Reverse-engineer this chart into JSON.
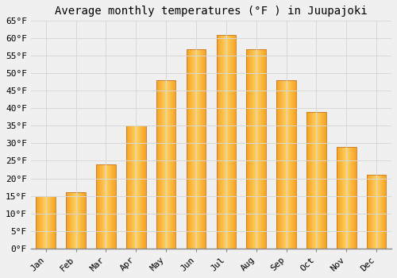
{
  "title": "Average monthly temperatures (°F ) in Juupajoki",
  "months": [
    "Jan",
    "Feb",
    "Mar",
    "Apr",
    "May",
    "Jun",
    "Jul",
    "Aug",
    "Sep",
    "Oct",
    "Nov",
    "Dec"
  ],
  "values": [
    15,
    16,
    24,
    35,
    48,
    57,
    61,
    57,
    48,
    39,
    29,
    21
  ],
  "bar_color_left": "#F5A020",
  "bar_color_center": "#FFD060",
  "bar_color_right": "#F5A020",
  "bar_edge_color": "#C87820",
  "ylim": [
    0,
    65
  ],
  "yticks": [
    0,
    5,
    10,
    15,
    20,
    25,
    30,
    35,
    40,
    45,
    50,
    55,
    60,
    65
  ],
  "ylabel_suffix": "°F",
  "background_color": "#f0f0f0",
  "grid_color": "#d8d8d8",
  "title_fontsize": 10,
  "tick_fontsize": 8,
  "font_family": "monospace"
}
